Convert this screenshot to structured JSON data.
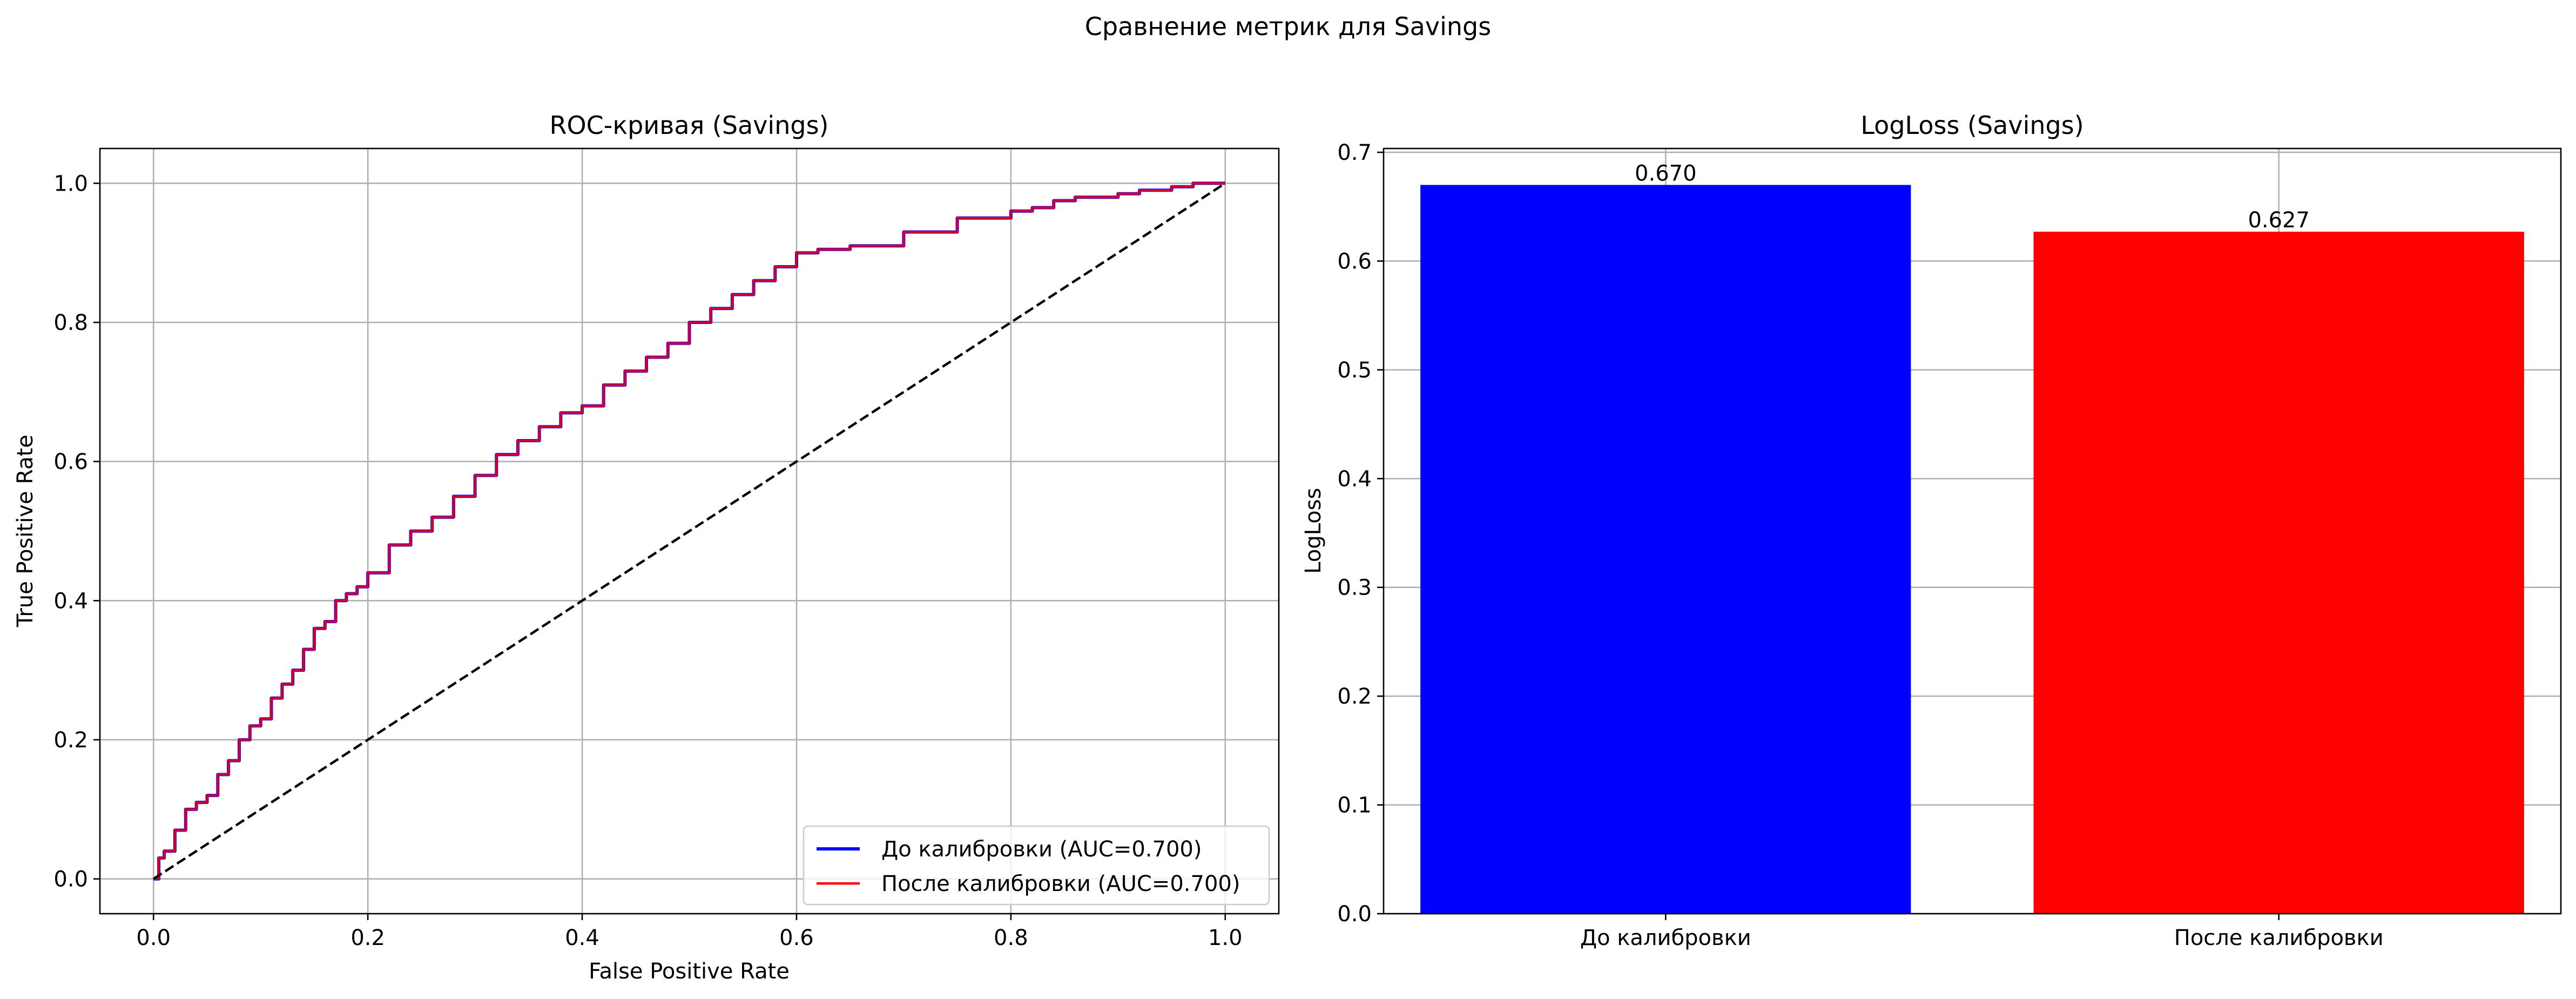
{
  "figure": {
    "suptitle": "Сравнение метрик для Savings"
  },
  "chart_data": [
    {
      "type": "line",
      "title": "ROC-кривая (Savings)",
      "xlabel": "False Positive Rate",
      "ylabel": "True Positive Rate",
      "xlim": [
        -0.05,
        1.05
      ],
      "ylim": [
        -0.05,
        1.05
      ],
      "xticks": [
        0.0,
        0.2,
        0.4,
        0.6,
        0.8,
        1.0
      ],
      "yticks": [
        0.0,
        0.2,
        0.4,
        0.6,
        0.8,
        1.0
      ],
      "tick_labels": [
        "0.0",
        "0.2",
        "0.4",
        "0.6",
        "0.8",
        "1.0"
      ],
      "grid": true,
      "legend_position": "lower right",
      "series": [
        {
          "name": "До калибровки (AUC=0.700)",
          "color": "#0000ff",
          "x": [
            0.0,
            0.005,
            0.01,
            0.02,
            0.03,
            0.04,
            0.05,
            0.06,
            0.07,
            0.08,
            0.09,
            0.1,
            0.11,
            0.12,
            0.13,
            0.14,
            0.15,
            0.16,
            0.17,
            0.18,
            0.19,
            0.2,
            0.22,
            0.24,
            0.26,
            0.28,
            0.3,
            0.32,
            0.34,
            0.36,
            0.38,
            0.4,
            0.42,
            0.44,
            0.46,
            0.48,
            0.5,
            0.52,
            0.54,
            0.56,
            0.58,
            0.6,
            0.62,
            0.65,
            0.7,
            0.75,
            0.8,
            0.82,
            0.84,
            0.86,
            0.88,
            0.9,
            0.92,
            0.95,
            0.97,
            1.0
          ],
          "y": [
            0.0,
            0.03,
            0.04,
            0.07,
            0.1,
            0.11,
            0.12,
            0.15,
            0.17,
            0.2,
            0.22,
            0.23,
            0.26,
            0.28,
            0.3,
            0.33,
            0.36,
            0.37,
            0.4,
            0.41,
            0.42,
            0.44,
            0.48,
            0.5,
            0.52,
            0.55,
            0.58,
            0.61,
            0.63,
            0.65,
            0.67,
            0.68,
            0.71,
            0.73,
            0.75,
            0.77,
            0.8,
            0.82,
            0.84,
            0.86,
            0.88,
            0.9,
            0.905,
            0.91,
            0.93,
            0.95,
            0.96,
            0.965,
            0.975,
            0.98,
            0.98,
            0.985,
            0.99,
            0.995,
            1.0,
            1.0
          ]
        },
        {
          "name": "После калибровки (AUC=0.700)",
          "color": "#ff0000",
          "x": [
            0.0,
            0.005,
            0.01,
            0.02,
            0.03,
            0.04,
            0.05,
            0.06,
            0.07,
            0.08,
            0.09,
            0.1,
            0.11,
            0.12,
            0.13,
            0.14,
            0.15,
            0.16,
            0.17,
            0.18,
            0.19,
            0.2,
            0.22,
            0.24,
            0.26,
            0.28,
            0.3,
            0.32,
            0.34,
            0.36,
            0.38,
            0.4,
            0.42,
            0.44,
            0.46,
            0.48,
            0.5,
            0.52,
            0.54,
            0.56,
            0.58,
            0.6,
            0.62,
            0.65,
            0.7,
            0.75,
            0.8,
            0.82,
            0.84,
            0.86,
            0.88,
            0.9,
            0.92,
            0.95,
            0.97,
            1.0
          ],
          "y": [
            0.0,
            0.03,
            0.04,
            0.07,
            0.1,
            0.11,
            0.12,
            0.15,
            0.17,
            0.2,
            0.22,
            0.23,
            0.26,
            0.28,
            0.3,
            0.33,
            0.36,
            0.37,
            0.4,
            0.41,
            0.42,
            0.44,
            0.48,
            0.5,
            0.52,
            0.55,
            0.58,
            0.61,
            0.63,
            0.65,
            0.67,
            0.68,
            0.71,
            0.73,
            0.75,
            0.77,
            0.8,
            0.82,
            0.84,
            0.86,
            0.88,
            0.9,
            0.905,
            0.91,
            0.93,
            0.95,
            0.96,
            0.965,
            0.975,
            0.98,
            0.98,
            0.985,
            0.99,
            0.995,
            1.0,
            1.0
          ]
        },
        {
          "color": "#000000",
          "dashed": true,
          "x": [
            0.0,
            1.0
          ],
          "y": [
            0.0,
            1.0
          ]
        }
      ]
    },
    {
      "type": "bar",
      "title": "LogLoss (Savings)",
      "xlabel": "",
      "ylabel": "LogLoss",
      "categories": [
        "До калибровки",
        "После калибровки"
      ],
      "values": [
        0.67,
        0.627
      ],
      "value_labels": [
        "0.670",
        "0.627"
      ],
      "colors": [
        "#0000ff",
        "#ff0000"
      ],
      "ylim": [
        0.0,
        0.7035
      ],
      "yticks": [
        0.0,
        0.1,
        0.2,
        0.3,
        0.4,
        0.5,
        0.6,
        0.7
      ],
      "ytick_labels": [
        "0.0",
        "0.1",
        "0.2",
        "0.3",
        "0.4",
        "0.5",
        "0.6",
        "0.7"
      ],
      "grid": true
    }
  ]
}
